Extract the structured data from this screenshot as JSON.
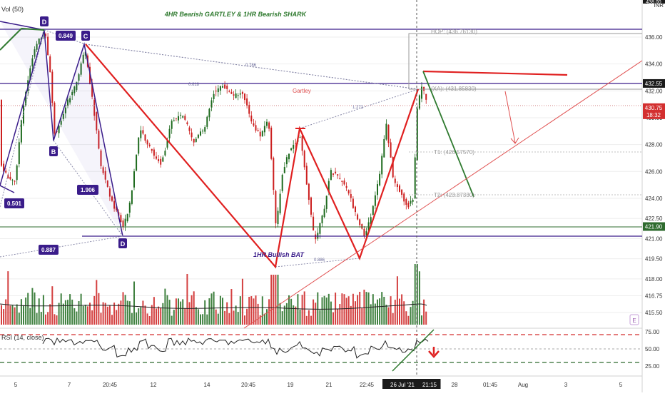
{
  "chart_data": {
    "type": "candlestick",
    "title": "4HR Bearish GARTLEY & 1HR Bearish SHARK",
    "subtitle": "",
    "currency": "INR",
    "volume_label": "Vol (50)",
    "rsi_label": "RSI (14, close)",
    "ylim": [
      414.7,
      438.3
    ],
    "price_ticks": [
      "436.00",
      "434.00",
      "432.00",
      "430.00",
      "428.00",
      "426.00",
      "424.00",
      "422.50",
      "421.00",
      "419.50",
      "418.00",
      "416.75",
      "415.50"
    ],
    "price_tick_values": [
      436,
      434,
      432,
      430,
      428,
      426,
      424,
      422.5,
      421,
      419.5,
      418,
      416.75,
      415.5
    ],
    "rsi_ticks": [
      "75.00",
      "50.00",
      "25.00"
    ],
    "rsi_tick_values": [
      75,
      50,
      25
    ],
    "rsi_levels": [
      70,
      30
    ],
    "time_ticks": [
      "5",
      "7",
      "20:45",
      "12",
      "14",
      "20:45",
      "19",
      "21",
      "22:45",
      "26 Jul '21",
      "21:15",
      "28",
      "01:45",
      "Aug",
      "3",
      "5"
    ],
    "price_badges": [
      {
        "label": "432.55",
        "value": 432.55,
        "color": "#1a1a1a"
      },
      {
        "label": "430.75",
        "sub": "18:32",
        "value": 430.75,
        "color": "#d32f2f"
      },
      {
        "label": "421.90",
        "value": 421.9,
        "color": "#2e6b2e"
      }
    ],
    "horizontal_levels": [
      {
        "value": 436.6,
        "color": "#3a1c8a"
      },
      {
        "value": 432.55,
        "color": "#3a1c8a"
      },
      {
        "value": 421.1,
        "color": "#3a1c8a"
      },
      {
        "value": 421.9,
        "color": "#2e6b2e"
      }
    ],
    "top_partial_label": "438.00",
    "pattern_points": [
      {
        "label": "D"
      },
      {
        "label": "C"
      },
      {
        "label": "B"
      },
      {
        "label": "D"
      }
    ],
    "ratio_boxes": [
      "0.849",
      "1.906",
      "0.501",
      "0.887"
    ],
    "ratio_labels": [
      "0.786",
      "0.618",
      "1.272",
      "0.886"
    ],
    "annotations": {
      "gartley": "Gartley",
      "bat": "1HR Bullish BAT",
      "hop": "HOP: (436.76130)",
      "xa": "(XA): (431.85830)",
      "t1": "T1: (426.57570)",
      "t2": "T2: (423.87330)",
      "e_badge": "E"
    }
  },
  "colors": {
    "up": "#1f6b1f",
    "down": "#cc1f1f",
    "pattern_purple": "#3a1c8a",
    "pattern_red": "#e02020",
    "pattern_green": "#2f7a2f",
    "grid": "#eeeeee"
  }
}
